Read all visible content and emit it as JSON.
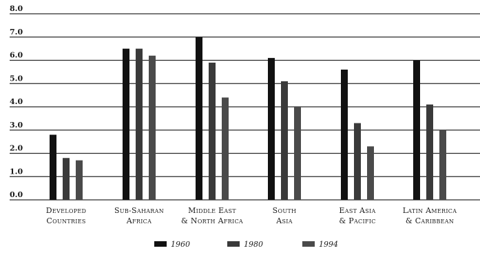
{
  "chart_data": {
    "type": "bar",
    "title": "",
    "xlabel": "",
    "ylabel": "",
    "ylim": [
      0,
      8
    ],
    "yticks": [
      "0.0",
      "1.0",
      "2.0",
      "3.0",
      "4.0",
      "5.0",
      "6.0",
      "7.0",
      "8.0"
    ],
    "grid": true,
    "legend_position": "bottom",
    "categories": [
      [
        "Developed",
        "Countries"
      ],
      [
        "Sub-Saharan",
        "Africa"
      ],
      [
        "Middle East",
        "& North Africa"
      ],
      [
        "South",
        "Asia"
      ],
      [
        "East Asia",
        "& Pacific"
      ],
      [
        "Latin America",
        "& Caribbean"
      ]
    ],
    "series": [
      {
        "name": "1960",
        "color": "#111111",
        "values": [
          2.8,
          6.5,
          7.0,
          6.1,
          5.6,
          6.0
        ]
      },
      {
        "name": "1980",
        "color": "#3a3a3a",
        "values": [
          1.8,
          6.5,
          5.9,
          5.1,
          3.3,
          4.1
        ]
      },
      {
        "name": "1994",
        "color": "#4a4a4a",
        "values": [
          1.7,
          6.2,
          4.4,
          4.0,
          2.3,
          3.0
        ]
      }
    ]
  }
}
